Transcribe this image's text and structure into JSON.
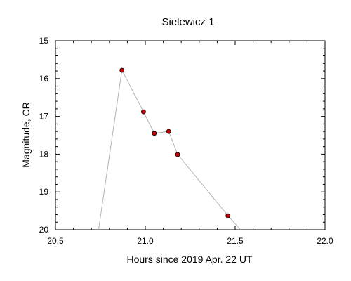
{
  "chart_data": {
    "type": "line",
    "title": "Sielewicz 1",
    "xlabel": "Hours since 2019 Apr. 22 UT",
    "ylabel": "Magnitude, CR",
    "xlim": [
      20.5,
      22.0
    ],
    "ylim": [
      15,
      20
    ],
    "y_inverted": true,
    "x_ticks": [
      20.5,
      21.0,
      21.5,
      22.0
    ],
    "x_tick_labels": [
      "20.5",
      "21.0",
      "21.5",
      "22.0"
    ],
    "y_ticks": [
      15,
      16,
      17,
      18,
      19,
      20
    ],
    "y_tick_labels": [
      "15",
      "16",
      "17",
      "18",
      "19",
      "20"
    ],
    "grid": false,
    "series": [
      {
        "x": [
          20.87,
          20.99,
          21.05,
          21.13,
          21.18,
          21.46
        ],
        "y": [
          15.78,
          16.88,
          17.45,
          17.4,
          18.01,
          19.63
        ],
        "marker_color": "#cc0000",
        "line_color": "#b4b4b4"
      }
    ],
    "fit_line": {
      "x": [
        20.74,
        20.87,
        20.99,
        21.05,
        21.13,
        21.18,
        21.46,
        21.53
      ],
      "y": [
        20.0,
        15.78,
        16.88,
        17.45,
        17.4,
        18.01,
        19.63,
        20.0
      ]
    }
  }
}
